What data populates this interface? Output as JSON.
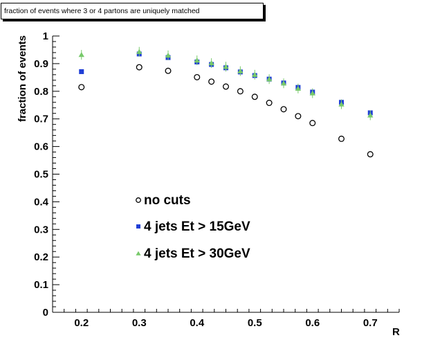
{
  "chart_data": {
    "type": "scatter",
    "title": "fraction of events where 3 or 4 partons are uniquely matched",
    "xlabel": "R",
    "ylabel": "fraction of events",
    "xlim": [
      0.15,
      0.75
    ],
    "ylim": [
      0,
      1
    ],
    "x_ticks": [
      {
        "value": 0.2,
        "label": "0.2"
      },
      {
        "value": 0.3,
        "label": "0.3"
      },
      {
        "value": 0.4,
        "label": "0.4"
      },
      {
        "value": 0.5,
        "label": "0.5"
      },
      {
        "value": 0.6,
        "label": "0.6"
      },
      {
        "value": 0.7,
        "label": "0.7"
      }
    ],
    "y_ticks": [
      {
        "value": 0,
        "label": "0"
      },
      {
        "value": 0.1,
        "label": "0.1"
      },
      {
        "value": 0.2,
        "label": "0.2"
      },
      {
        "value": 0.3,
        "label": "0.3"
      },
      {
        "value": 0.4,
        "label": "0.4"
      },
      {
        "value": 0.5,
        "label": "0.5"
      },
      {
        "value": 0.6,
        "label": "0.6"
      },
      {
        "value": 0.7,
        "label": "0.7"
      },
      {
        "value": 0.8,
        "label": "0.8"
      },
      {
        "value": 0.9,
        "label": "0.9"
      },
      {
        "value": 1,
        "label": "1"
      }
    ],
    "grid": false,
    "legend_position": "lower-center",
    "series": [
      {
        "name": "no cuts",
        "marker": "open-circle",
        "color": "#000000",
        "x": [
          0.2,
          0.3,
          0.35,
          0.4,
          0.425,
          0.45,
          0.475,
          0.5,
          0.525,
          0.55,
          0.575,
          0.6,
          0.65,
          0.7
        ],
        "y": [
          0.815,
          0.887,
          0.874,
          0.851,
          0.835,
          0.817,
          0.8,
          0.78,
          0.758,
          0.735,
          0.71,
          0.685,
          0.628,
          0.572
        ]
      },
      {
        "name": "4 jets Et > 15GeV",
        "marker": "filled-square",
        "color": "#1f3fd6",
        "x": [
          0.2,
          0.3,
          0.35,
          0.4,
          0.425,
          0.45,
          0.475,
          0.5,
          0.525,
          0.55,
          0.575,
          0.6,
          0.65,
          0.7
        ],
        "y": [
          0.871,
          0.935,
          0.922,
          0.906,
          0.897,
          0.885,
          0.87,
          0.857,
          0.844,
          0.83,
          0.814,
          0.797,
          0.76,
          0.722
        ]
      },
      {
        "name": "4 jets Et > 30GeV",
        "marker": "filled-triangle",
        "color": "#77c96a",
        "x": [
          0.2,
          0.3,
          0.35,
          0.4,
          0.425,
          0.45,
          0.475,
          0.5,
          0.525,
          0.55,
          0.575,
          0.6,
          0.65,
          0.7
        ],
        "y": [
          0.932,
          0.943,
          0.93,
          0.912,
          0.902,
          0.889,
          0.873,
          0.86,
          0.844,
          0.829,
          0.81,
          0.793,
          0.753,
          0.713
        ]
      }
    ]
  }
}
